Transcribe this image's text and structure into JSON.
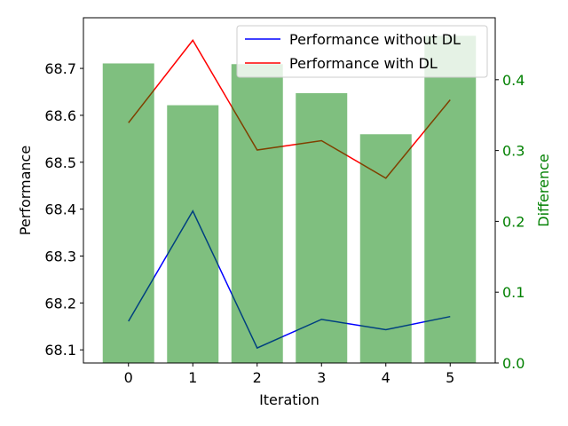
{
  "chart_data": {
    "type": "bar+line",
    "title": "",
    "xlabel": "Iteration",
    "ylabel_left": "Performance",
    "ylabel_right": "Difference",
    "x": [
      0,
      1,
      2,
      3,
      4,
      5
    ],
    "xlim": [
      -0.7,
      5.7
    ],
    "ylim_left": [
      68.072,
      68.808
    ],
    "ylim_right": [
      0.0,
      0.4875
    ],
    "left_ticks": [
      68.1,
      68.2,
      68.3,
      68.4,
      68.5,
      68.6,
      68.7
    ],
    "left_tick_labels": [
      "68.1",
      "68.2",
      "68.3",
      "68.4",
      "68.5",
      "68.6",
      "68.7"
    ],
    "right_ticks": [
      0.0,
      0.1,
      0.2,
      0.3,
      0.4
    ],
    "right_tick_labels": [
      "0.0",
      "0.1",
      "0.2",
      "0.3",
      "0.4"
    ],
    "x_tick_labels": [
      "0",
      "1",
      "2",
      "3",
      "4",
      "5"
    ],
    "series": [
      {
        "name": "Performance without DL",
        "kind": "line",
        "axis": "left",
        "color": "#0000ff",
        "values": [
          68.161,
          68.396,
          68.104,
          68.165,
          68.143,
          68.171
        ]
      },
      {
        "name": "Performance with DL",
        "kind": "line",
        "axis": "left",
        "color": "#ff0000",
        "values": [
          68.584,
          68.76,
          68.526,
          68.546,
          68.466,
          68.633
        ]
      },
      {
        "name": "Difference",
        "kind": "bar",
        "axis": "right",
        "color": "#008000",
        "opacity": 0.5,
        "values": [
          0.423,
          0.364,
          0.422,
          0.381,
          0.323,
          0.462
        ]
      }
    ],
    "right_axis_color": "#008000",
    "legend_position": "top-right",
    "grid": false
  }
}
